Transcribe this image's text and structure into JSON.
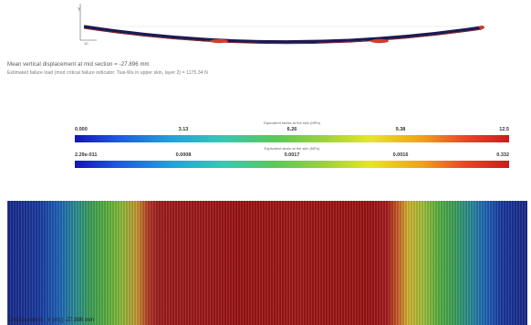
{
  "beam_view": {
    "axis_label_y": "Y",
    "axis_label_corner": "10",
    "colors": {
      "beam": "#1a1a55",
      "supports": "#d23c2a",
      "axis": "#888888"
    }
  },
  "readouts": {
    "line1": "Mean vertical displacement at mid section = -27.896 mm",
    "line2": "Estimated failure load (mod critical failure indicator: Tsai-Wu in upper skin, layer 2) = 1175.34 N"
  },
  "scale_top": {
    "title": "Equivalent stress at the skin (MPa)",
    "ticks": [
      "0.000",
      "3.13",
      "6.26",
      "9.38",
      "12.5"
    ]
  },
  "scale_bottom": {
    "title": "Equivalent strain at the skin (MPa)",
    "ticks": [
      "2.29e-011",
      "0.0008",
      "0.0017",
      "0.0016",
      "0.332"
    ]
  },
  "contour": {
    "caption": "Displacement - Y (m) | -27.896 mm"
  }
}
